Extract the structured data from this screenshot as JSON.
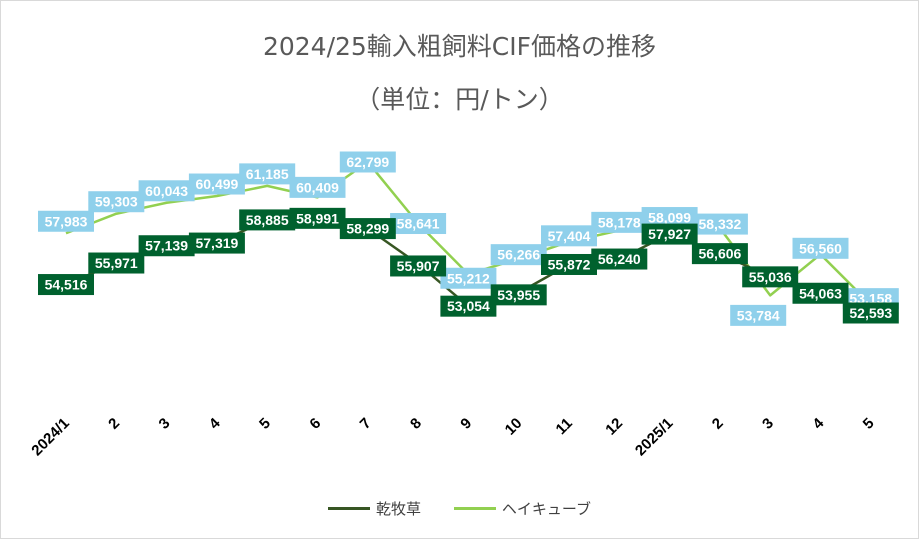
{
  "chart_data": {
    "type": "line",
    "title": "2024/25輸入粗飼料CIF価格の推移",
    "subtitle": "（単位：円/トン）",
    "categories": [
      "2024/1",
      "2",
      "3",
      "4",
      "5",
      "6",
      "7",
      "8",
      "9",
      "10",
      "11",
      "12",
      "2025/1",
      "2",
      "3",
      "4",
      "5"
    ],
    "series": [
      {
        "name": "乾牧草",
        "color": "#375623",
        "label_bg": "#00612e",
        "values": [
          54516,
          55971,
          57139,
          57319,
          58885,
          58991,
          58299,
          55907,
          53054,
          53955,
          55872,
          56240,
          57927,
          56606,
          55036,
          54063,
          52593
        ],
        "labels": [
          "54,516",
          "55,971",
          "57,139",
          "57,319",
          "58,885",
          "58,991",
          "58,299",
          "55,907",
          "53,054",
          "53,955",
          "55,872",
          "56,240",
          "57,927",
          "56,606",
          "55,036",
          "54,063",
          "52,593"
        ]
      },
      {
        "name": "ヘイキューブ",
        "color": "#92d050",
        "label_bg": "#8fd0eb",
        "values": [
          57983,
          59303,
          60043,
          60499,
          61185,
          60409,
          62799,
          58641,
          55212,
          56266,
          57404,
          58178,
          58099,
          58332,
          53784,
          56560,
          53158
        ],
        "labels": [
          "57,983",
          "59,303",
          "60,043",
          "60,499",
          "61,185",
          "60,409",
          "62,799",
          "58,641",
          "55,212",
          "56,266",
          "57,404",
          "58,178",
          "58,099",
          "58,332",
          "53,784",
          "56,560",
          "53,158"
        ]
      }
    ],
    "legend_position": "bottom",
    "grid": false
  }
}
